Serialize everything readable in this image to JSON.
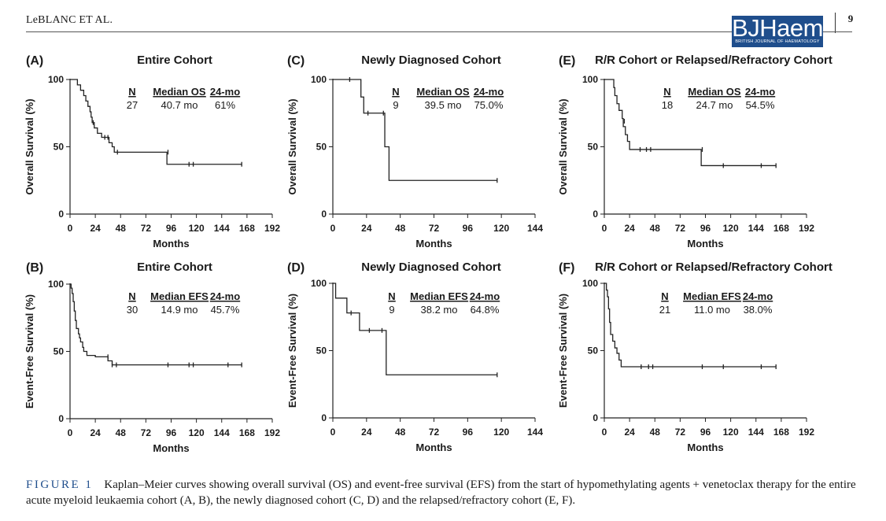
{
  "header": {
    "running_head": "LeBLANC ET AL.",
    "page_number": "9",
    "logo_main": "BJHaem",
    "logo_sub": "BRITISH JOURNAL OF HAEMATOLOGY"
  },
  "caption": {
    "label": "FIGURE 1",
    "text": "Kaplan–Meier curves showing overall survival (OS) and event-free survival (EFS) from the start of hypomethylating agents + venetoclax therapy for the entire acute myeloid leukaemia cohort (A, B), the newly diagnosed cohort (C, D) and the relapsed/refractory cohort (E, F)."
  },
  "chart_data": [
    {
      "panel": "(A)",
      "type": "line",
      "title": "Entire Cohort",
      "xlabel": "Months",
      "ylabel": "Overall Survival (%)",
      "xlim": [
        0,
        192
      ],
      "xticks": [
        0,
        24,
        48,
        72,
        96,
        120,
        144,
        168,
        192
      ],
      "ylim": [
        0,
        100
      ],
      "yticks": [
        0,
        50,
        100
      ],
      "stats": {
        "headers": [
          "N",
          "Median OS",
          "24-mo"
        ],
        "values": [
          "27",
          "40.7 mo",
          "61%"
        ]
      },
      "steps": [
        [
          0,
          100
        ],
        [
          7,
          96
        ],
        [
          10,
          92
        ],
        [
          13,
          88
        ],
        [
          15,
          84
        ],
        [
          17,
          80
        ],
        [
          19,
          76
        ],
        [
          20,
          72
        ],
        [
          21,
          68
        ],
        [
          23,
          64
        ],
        [
          26,
          60
        ],
        [
          30,
          57
        ],
        [
          37,
          53
        ],
        [
          40,
          50
        ],
        [
          42,
          46
        ],
        [
          92,
          37
        ],
        [
          163,
          37
        ]
      ],
      "censors": [
        [
          22,
          68
        ],
        [
          33,
          57
        ],
        [
          36,
          57
        ],
        [
          45,
          46
        ],
        [
          93,
          46
        ],
        [
          113,
          37
        ],
        [
          117,
          37
        ],
        [
          163,
          37
        ]
      ]
    },
    {
      "panel": "(B)",
      "type": "line",
      "title": "Entire Cohort",
      "xlabel": "Months",
      "ylabel": "Event-Free Survival (%)",
      "xlim": [
        0,
        192
      ],
      "xticks": [
        0,
        24,
        48,
        72,
        96,
        120,
        144,
        168,
        192
      ],
      "ylim": [
        0,
        100
      ],
      "yticks": [
        0,
        50,
        100
      ],
      "stats": {
        "headers": [
          "N",
          "Median EFS",
          "24-mo"
        ],
        "values": [
          "30",
          "14.9 mo",
          "45.7%"
        ]
      },
      "steps": [
        [
          0,
          100
        ],
        [
          1,
          97
        ],
        [
          2,
          93
        ],
        [
          3,
          87
        ],
        [
          4,
          80
        ],
        [
          5,
          73
        ],
        [
          6,
          67
        ],
        [
          8,
          63
        ],
        [
          9,
          60
        ],
        [
          10,
          57
        ],
        [
          12,
          53
        ],
        [
          13,
          50
        ],
        [
          16,
          47
        ],
        [
          24,
          46
        ],
        [
          36,
          43
        ],
        [
          40,
          40
        ],
        [
          163,
          40
        ]
      ],
      "censors": [
        [
          36,
          46
        ],
        [
          40,
          40
        ],
        [
          44,
          40
        ],
        [
          93,
          40
        ],
        [
          113,
          40
        ],
        [
          117,
          40
        ],
        [
          150,
          40
        ],
        [
          163,
          40
        ]
      ]
    },
    {
      "panel": "(C)",
      "type": "line",
      "title": "Newly Diagnosed Cohort",
      "xlabel": "Months",
      "ylabel": "Overall Survival (%)",
      "xlim": [
        0,
        144
      ],
      "xticks": [
        0,
        24,
        48,
        72,
        96,
        120,
        144
      ],
      "ylim": [
        0,
        100
      ],
      "yticks": [
        0,
        50,
        100
      ],
      "stats": {
        "headers": [
          "N",
          "Median OS",
          "24-mo"
        ],
        "values": [
          "9",
          "39.5 mo",
          "75.0%"
        ]
      },
      "steps": [
        [
          0,
          100
        ],
        [
          20,
          87
        ],
        [
          22,
          75
        ],
        [
          37,
          50
        ],
        [
          40,
          25
        ],
        [
          117,
          25
        ]
      ],
      "censors": [
        [
          12,
          100
        ],
        [
          25,
          75
        ],
        [
          36,
          75
        ],
        [
          117,
          25
        ]
      ]
    },
    {
      "panel": "(D)",
      "type": "line",
      "title": "Newly Diagnosed Cohort",
      "xlabel": "Months",
      "ylabel": "Event-Free Survival (%)",
      "xlim": [
        0,
        144
      ],
      "xticks": [
        0,
        24,
        48,
        72,
        96,
        120,
        144
      ],
      "ylim": [
        0,
        100
      ],
      "yticks": [
        0,
        50,
        100
      ],
      "stats": {
        "headers": [
          "N",
          "Median EFS",
          "24-mo"
        ],
        "values": [
          "9",
          "38.2 mo",
          "64.8%"
        ]
      },
      "steps": [
        [
          0,
          100
        ],
        [
          2,
          89
        ],
        [
          10,
          78
        ],
        [
          19,
          65
        ],
        [
          38,
          32
        ],
        [
          117,
          32
        ]
      ],
      "censors": [
        [
          13,
          78
        ],
        [
          26,
          65
        ],
        [
          35,
          65
        ],
        [
          117,
          32
        ]
      ]
    },
    {
      "panel": "(E)",
      "type": "line",
      "title": "R/R Cohort or Relapsed/Refractory Cohort",
      "xlabel": "Months",
      "ylabel": "Overall Survival (%)",
      "xlim": [
        0,
        192
      ],
      "xticks": [
        0,
        24,
        48,
        72,
        96,
        120,
        144,
        168,
        192
      ],
      "ylim": [
        0,
        100
      ],
      "yticks": [
        0,
        50,
        100
      ],
      "stats": {
        "headers": [
          "N",
          "Median OS",
          "24-mo"
        ],
        "values": [
          "18",
          "24.7 mo",
          "54.5%"
        ]
      },
      "steps": [
        [
          0,
          100
        ],
        [
          9,
          94
        ],
        [
          10,
          88
        ],
        [
          12,
          82
        ],
        [
          14,
          77
        ],
        [
          17,
          71
        ],
        [
          18,
          65
        ],
        [
          20,
          59
        ],
        [
          22,
          54
        ],
        [
          24,
          48
        ],
        [
          92,
          36
        ],
        [
          163,
          36
        ]
      ],
      "censors": [
        [
          19,
          69
        ],
        [
          34,
          48
        ],
        [
          40,
          48
        ],
        [
          44,
          48
        ],
        [
          93,
          48
        ],
        [
          113,
          36
        ],
        [
          149,
          36
        ],
        [
          163,
          36
        ]
      ]
    },
    {
      "panel": "(F)",
      "type": "line",
      "title": "R/R Cohort or Relapsed/Refractory Cohort",
      "xlabel": "Months",
      "ylabel": "Event-Free Survival (%)",
      "xlim": [
        0,
        192
      ],
      "xticks": [
        0,
        24,
        48,
        72,
        96,
        120,
        144,
        168,
        192
      ],
      "ylim": [
        0,
        100
      ],
      "yticks": [
        0,
        50,
        100
      ],
      "stats": {
        "headers": [
          "N",
          "Median EFS",
          "24-mo"
        ],
        "values": [
          "21",
          "11.0 mo",
          "38.0%"
        ]
      },
      "steps": [
        [
          0,
          100
        ],
        [
          2,
          95
        ],
        [
          3,
          90
        ],
        [
          4,
          81
        ],
        [
          5,
          71
        ],
        [
          6,
          62
        ],
        [
          8,
          57
        ],
        [
          10,
          52
        ],
        [
          12,
          48
        ],
        [
          14,
          43
        ],
        [
          16,
          38
        ],
        [
          163,
          38
        ]
      ],
      "censors": [
        [
          35,
          38
        ],
        [
          42,
          38
        ],
        [
          46,
          38
        ],
        [
          93,
          38
        ],
        [
          113,
          38
        ],
        [
          149,
          38
        ],
        [
          163,
          38
        ]
      ]
    }
  ]
}
